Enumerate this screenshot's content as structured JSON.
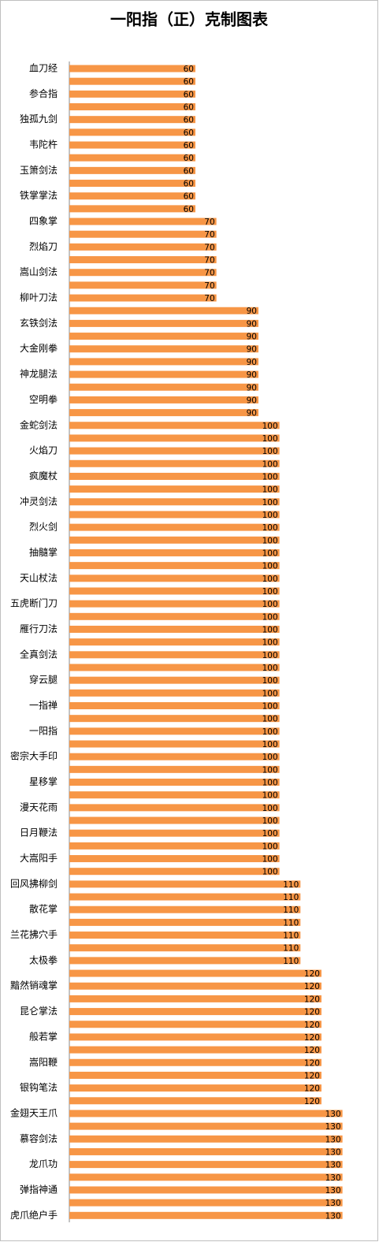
{
  "chart_data": {
    "type": "bar",
    "orientation": "horizontal",
    "title": "一阳指（正）克制图表",
    "categories": [
      "血刀经",
      null,
      "参合指",
      null,
      "独孤九剑",
      null,
      "韦陀杵",
      null,
      "玉箫剑法",
      null,
      "铁掌掌法",
      null,
      "四象掌",
      null,
      "烈焰刀",
      null,
      "嵩山剑法",
      null,
      "柳叶刀法",
      null,
      "玄铁剑法",
      null,
      "大金刚拳",
      null,
      "神龙腿法",
      null,
      "空明拳",
      null,
      "金蛇剑法",
      null,
      "火焰刀",
      null,
      "疯魔杖",
      null,
      "冲灵剑法",
      null,
      "烈火剑",
      null,
      "抽髓掌",
      null,
      "天山杖法",
      null,
      "五虎断门刀",
      null,
      "雁行刀法",
      null,
      "全真剑法",
      null,
      "穿云腿",
      null,
      "一指禅",
      null,
      "一阳指",
      null,
      "密宗大手印",
      null,
      "星移掌",
      null,
      "漫天花雨",
      null,
      "日月鞭法",
      null,
      "大嵩阳手",
      null,
      "回风拂柳剑",
      null,
      "散花掌",
      null,
      "兰花拂穴手",
      null,
      "太极拳",
      null,
      "黯然销魂掌",
      null,
      "昆仑掌法",
      null,
      "般若掌",
      null,
      "嵩阳鞭",
      null,
      "银钩笔法",
      null,
      "金翅天王爪",
      null,
      "慕容剑法",
      null,
      "龙爪功",
      null,
      "弹指神通",
      null,
      "虎爪绝户手"
    ],
    "values": [
      60,
      60,
      60,
      60,
      60,
      60,
      60,
      60,
      60,
      60,
      60,
      60,
      70,
      70,
      70,
      70,
      70,
      70,
      70,
      90,
      90,
      90,
      90,
      90,
      90,
      90,
      90,
      90,
      100,
      100,
      100,
      100,
      100,
      100,
      100,
      100,
      100,
      100,
      100,
      100,
      100,
      100,
      100,
      100,
      100,
      100,
      100,
      100,
      100,
      100,
      100,
      100,
      100,
      100,
      100,
      100,
      100,
      100,
      100,
      100,
      100,
      100,
      100,
      100,
      110,
      110,
      110,
      110,
      110,
      110,
      110,
      120,
      120,
      120,
      120,
      120,
      120,
      120,
      120,
      120,
      120,
      120,
      130,
      130,
      130,
      130,
      130,
      130,
      130,
      130,
      130
    ],
    "color": "#f79646",
    "xlim": [
      0,
      140
    ]
  }
}
